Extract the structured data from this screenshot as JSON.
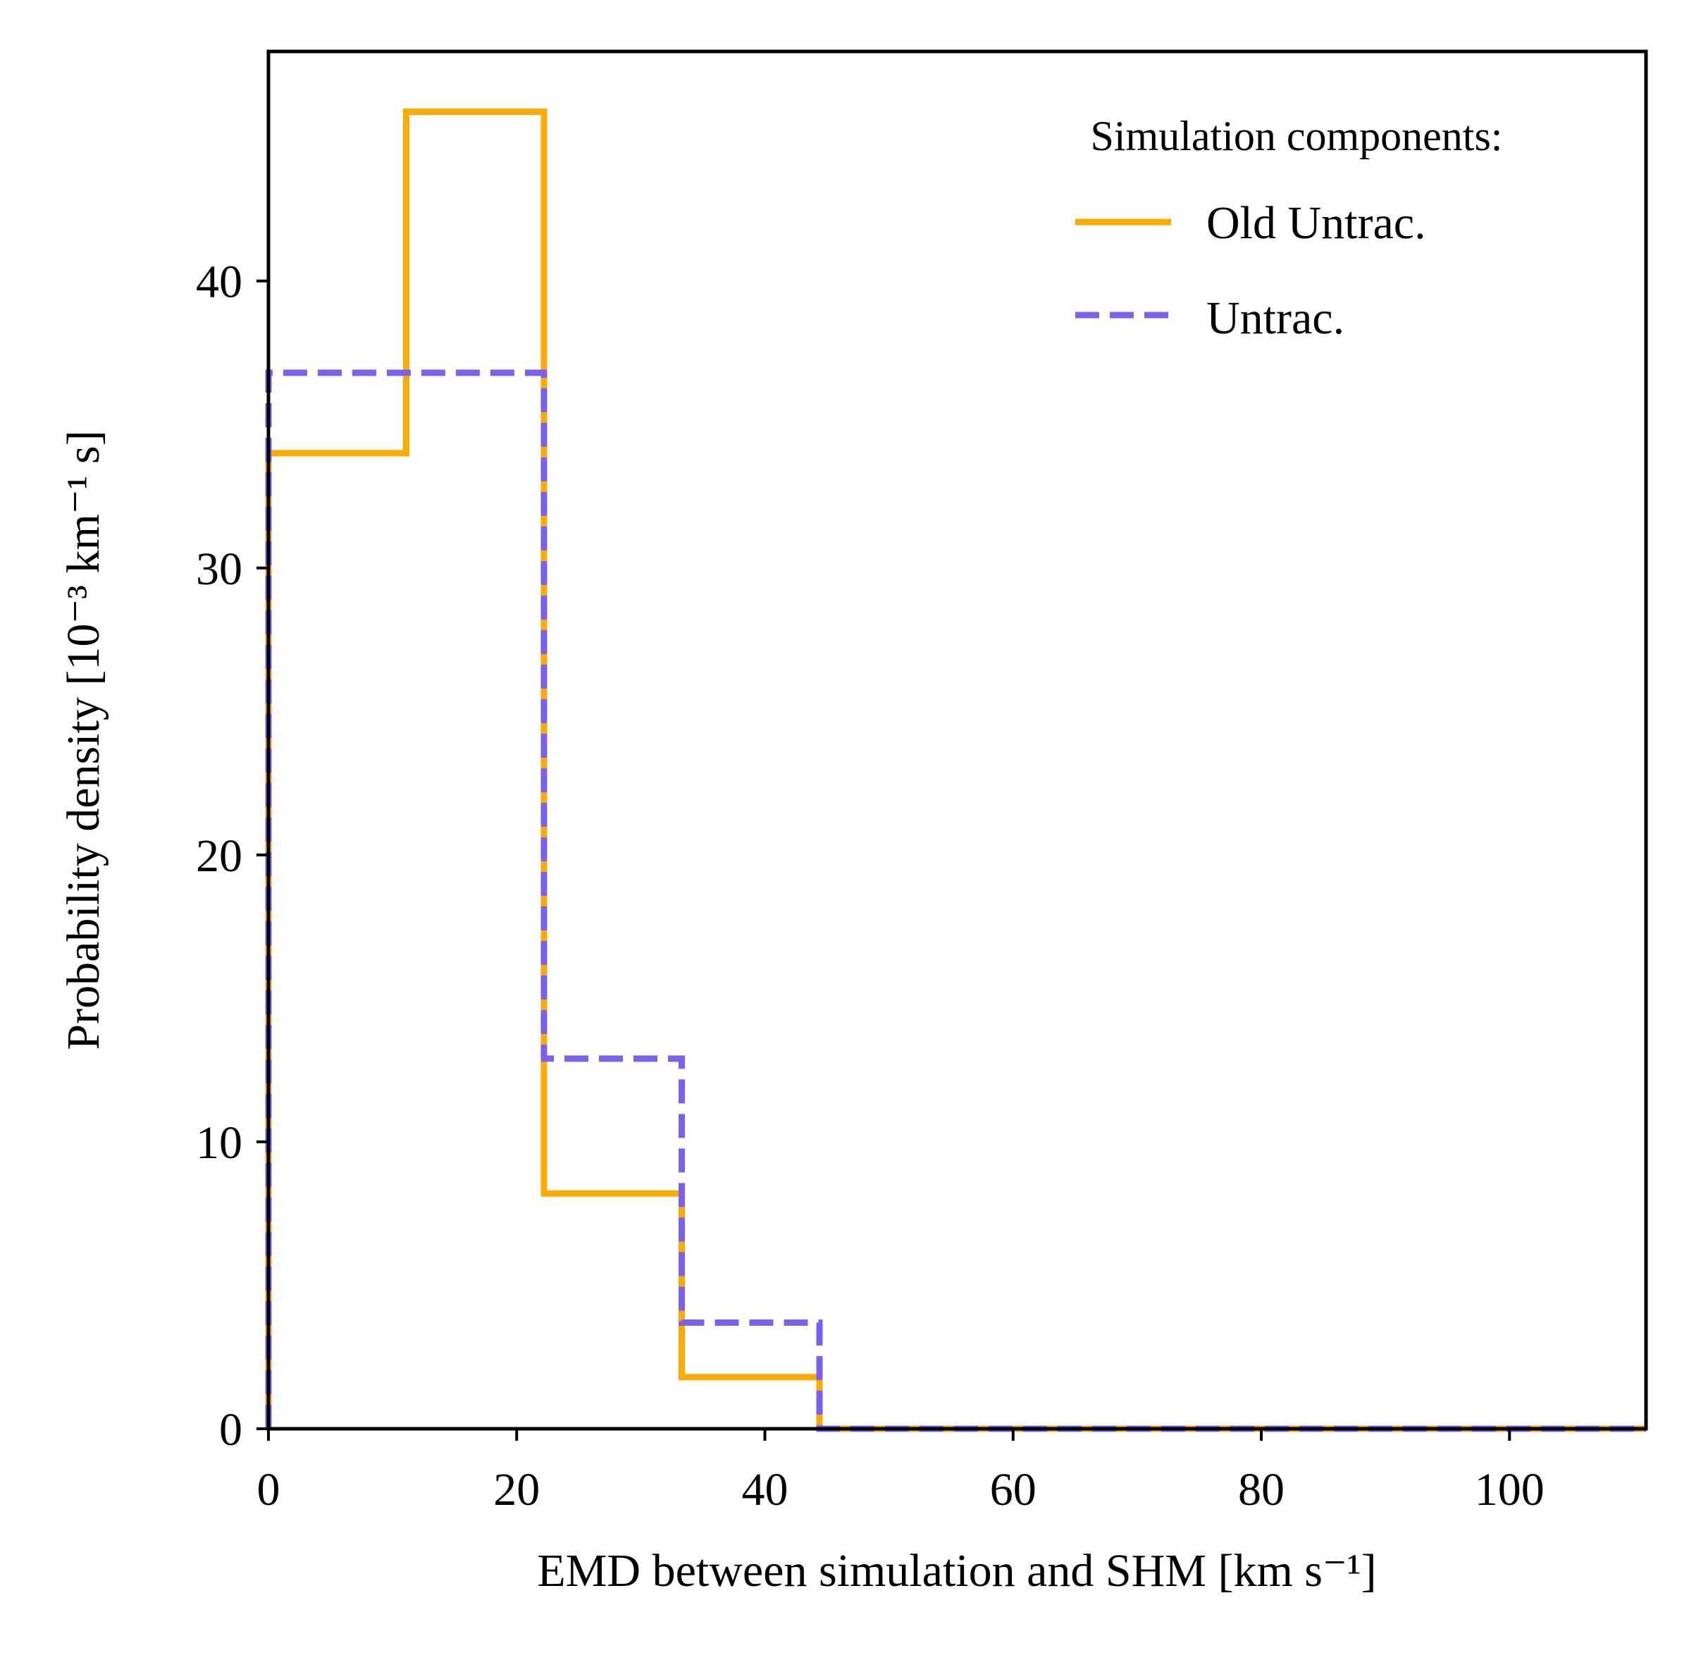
{
  "chart_data": {
    "type": "histogram-step",
    "xlabel": "EMD between simulation and SHM [km s⁻¹]",
    "ylabel": "Probability density [10⁻³ km⁻¹ s]",
    "xlim": [
      0,
      111
    ],
    "ylim": [
      0,
      48
    ],
    "xticks": [
      0,
      20,
      40,
      60,
      80,
      100
    ],
    "yticks": [
      0,
      10,
      20,
      30,
      40
    ],
    "bin_edges": [
      0,
      11.1,
      22.2,
      33.3,
      44.4,
      55.5,
      66.6,
      77.7,
      88.8,
      99.9,
      111
    ],
    "series": [
      {
        "name": "Old Untrac.",
        "style": "solid",
        "color": "#FFAA00",
        "values": [
          34.0,
          45.9,
          8.2,
          1.8,
          0,
          0,
          0,
          0,
          0,
          0
        ]
      },
      {
        "name": "Untrac.",
        "style": "dashed",
        "color": "#7B61EE",
        "values": [
          36.8,
          36.8,
          12.9,
          3.7,
          0,
          0,
          0,
          0,
          0,
          0
        ]
      }
    ],
    "legend": {
      "title": "Simulation components:",
      "placement": "top-right"
    }
  }
}
